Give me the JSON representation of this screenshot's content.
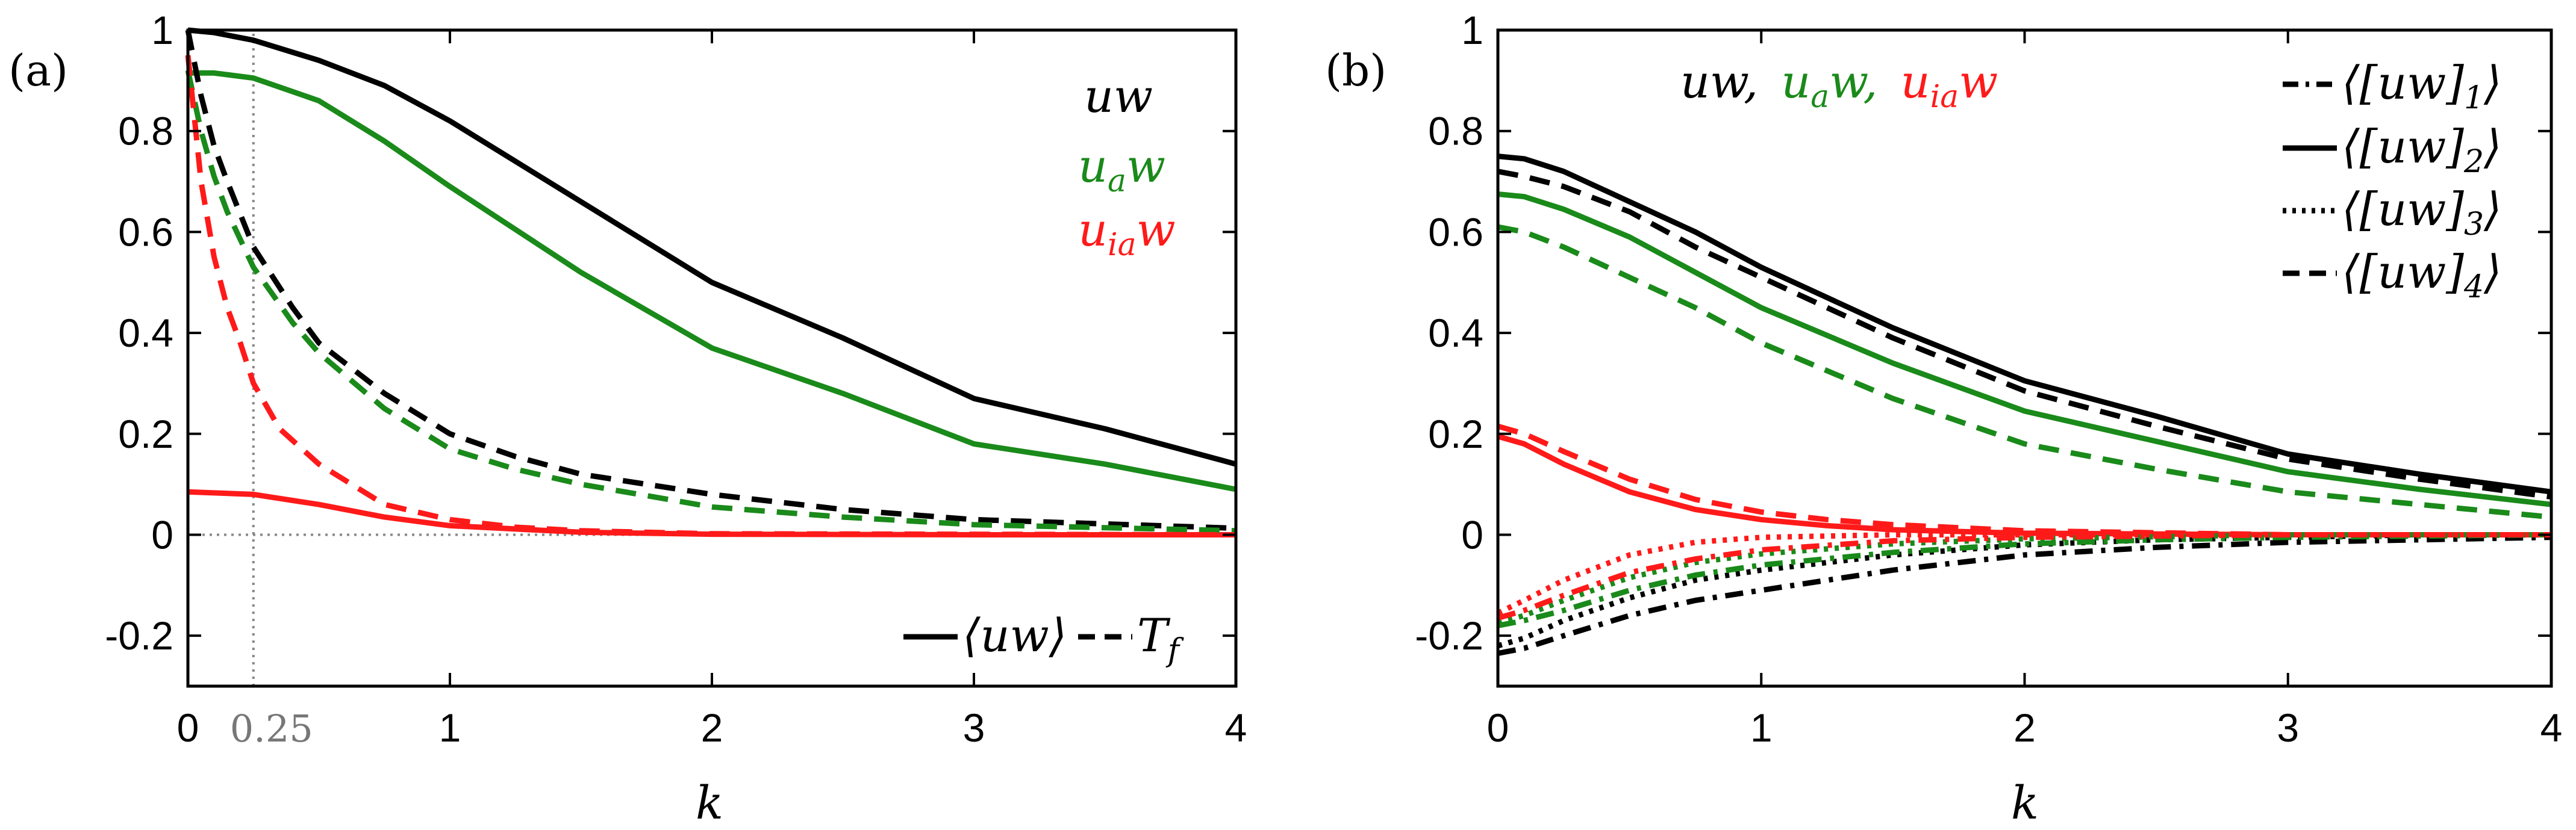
{
  "chart_data": [
    {
      "type": "line",
      "panel_label": "(a)",
      "xlabel": "k",
      "ylabel": "",
      "xlim": [
        0,
        4
      ],
      "ylim": [
        -0.3,
        1
      ],
      "xticks": [
        "0",
        "1",
        "2",
        "3",
        "4"
      ],
      "yticks": [
        "-0.2",
        "0",
        "0.2",
        "0.4",
        "0.6",
        "0.8",
        "1"
      ],
      "ref_x_label": "0.25",
      "ref_x_value": 0.25,
      "color_labels": [
        {
          "text": "uw",
          "color": "#000000"
        },
        {
          "text": "u",
          "sub": "a",
          "tail": "w",
          "color": "#1a8a1a"
        },
        {
          "text": "u",
          "sub": "ia",
          "tail": "w",
          "color": "#ff1a1a"
        }
      ],
      "legend": [
        {
          "label": "⟨uw⟩",
          "style": "solid"
        },
        {
          "label": "T",
          "sub": "f",
          "style": "dashed"
        }
      ],
      "series": [
        {
          "name": "uw ⟨uw⟩",
          "color": "#000000",
          "style": "solid",
          "x": [
            0,
            0.1,
            0.25,
            0.5,
            0.75,
            1,
            1.5,
            2,
            2.5,
            3,
            3.5,
            4
          ],
          "y": [
            1.0,
            0.995,
            0.98,
            0.94,
            0.89,
            0.82,
            0.66,
            0.5,
            0.39,
            0.27,
            0.21,
            0.14
          ]
        },
        {
          "name": "u_a w ⟨uw⟩",
          "color": "#1a8a1a",
          "style": "solid",
          "x": [
            0,
            0.1,
            0.25,
            0.5,
            0.75,
            1,
            1.5,
            2,
            2.5,
            3,
            3.5,
            4
          ],
          "y": [
            0.915,
            0.915,
            0.905,
            0.86,
            0.78,
            0.69,
            0.52,
            0.37,
            0.28,
            0.18,
            0.14,
            0.09
          ]
        },
        {
          "name": "u_ia w ⟨uw⟩",
          "color": "#ff1a1a",
          "style": "solid",
          "x": [
            0,
            0.25,
            0.5,
            0.75,
            1,
            1.5,
            2,
            3,
            4
          ],
          "y": [
            0.085,
            0.08,
            0.06,
            0.035,
            0.018,
            0.005,
            0.001,
            0.0,
            0.0
          ]
        },
        {
          "name": "uw T_f",
          "color": "#000000",
          "style": "dashed",
          "x": [
            0,
            0.05,
            0.1,
            0.15,
            0.25,
            0.4,
            0.5,
            0.75,
            1,
            1.25,
            1.5,
            2,
            2.5,
            3,
            4
          ],
          "y": [
            1.0,
            0.87,
            0.77,
            0.7,
            0.57,
            0.45,
            0.38,
            0.28,
            0.2,
            0.155,
            0.12,
            0.08,
            0.05,
            0.03,
            0.013
          ]
        },
        {
          "name": "u_a w T_f",
          "color": "#1a8a1a",
          "style": "dashed",
          "x": [
            0,
            0.05,
            0.1,
            0.15,
            0.25,
            0.4,
            0.5,
            0.75,
            1,
            1.25,
            1.5,
            2,
            2.5,
            3,
            4
          ],
          "y": [
            0.92,
            0.8,
            0.71,
            0.64,
            0.53,
            0.42,
            0.36,
            0.25,
            0.17,
            0.13,
            0.1,
            0.055,
            0.035,
            0.02,
            0.008
          ]
        },
        {
          "name": "u_ia w T_f",
          "color": "#ff1a1a",
          "style": "dashed",
          "x": [
            0,
            0.05,
            0.1,
            0.15,
            0.2,
            0.25,
            0.35,
            0.5,
            0.75,
            1,
            1.25,
            1.5,
            2,
            4
          ],
          "y": [
            0.95,
            0.7,
            0.55,
            0.45,
            0.38,
            0.3,
            0.21,
            0.14,
            0.06,
            0.03,
            0.015,
            0.008,
            0.002,
            0.0
          ]
        }
      ]
    },
    {
      "type": "line",
      "panel_label": "(b)",
      "xlabel": "k",
      "ylabel": "",
      "xlim": [
        0,
        4
      ],
      "ylim": [
        -0.3,
        1
      ],
      "xticks": [
        "0",
        "1",
        "2",
        "3",
        "4"
      ],
      "yticks": [
        "-0.2",
        "0",
        "0.2",
        "0.4",
        "0.6",
        "0.8",
        "1"
      ],
      "title_labels": [
        {
          "text": "uw,",
          "color": "#000000"
        },
        {
          "text": "u",
          "sub": "a",
          "tail": "w,",
          "color": "#1a8a1a"
        },
        {
          "text": "u",
          "sub": "ia",
          "tail": "w",
          "color": "#ff1a1a"
        }
      ],
      "legend": [
        {
          "label": "⟨[uw]",
          "sub": "1",
          "suffix": "⟩",
          "style": "dashdot"
        },
        {
          "label": "⟨[uw]",
          "sub": "2",
          "suffix": "⟩",
          "style": "solid"
        },
        {
          "label": "⟨[uw]",
          "sub": "3",
          "suffix": "⟩",
          "style": "dotted"
        },
        {
          "label": "⟨[uw]",
          "sub": "4",
          "suffix": "⟩",
          "style": "dashed"
        }
      ],
      "series": [
        {
          "name": "uw [uw]2",
          "color": "#000000",
          "style": "solid",
          "x": [
            0,
            0.1,
            0.25,
            0.5,
            0.75,
            1,
            1.5,
            2,
            2.5,
            3,
            3.5,
            4
          ],
          "y": [
            0.75,
            0.745,
            0.72,
            0.66,
            0.6,
            0.53,
            0.41,
            0.305,
            0.235,
            0.16,
            0.12,
            0.085
          ]
        },
        {
          "name": "uw [uw]4",
          "color": "#000000",
          "style": "dashed",
          "x": [
            0,
            0.1,
            0.25,
            0.5,
            0.75,
            1,
            1.5,
            2,
            2.5,
            3,
            3.5,
            4
          ],
          "y": [
            0.72,
            0.71,
            0.69,
            0.64,
            0.57,
            0.51,
            0.39,
            0.285,
            0.215,
            0.15,
            0.11,
            0.075
          ]
        },
        {
          "name": "u_a w [uw]2",
          "color": "#1a8a1a",
          "style": "solid",
          "x": [
            0,
            0.1,
            0.25,
            0.5,
            0.75,
            1,
            1.5,
            2,
            2.5,
            3,
            3.5,
            4
          ],
          "y": [
            0.675,
            0.67,
            0.645,
            0.59,
            0.52,
            0.45,
            0.34,
            0.245,
            0.185,
            0.125,
            0.09,
            0.06
          ]
        },
        {
          "name": "u_a w [uw]4",
          "color": "#1a8a1a",
          "style": "dashed",
          "x": [
            0,
            0.1,
            0.25,
            0.5,
            0.75,
            1,
            1.5,
            2,
            2.5,
            3,
            3.5,
            4
          ],
          "y": [
            0.61,
            0.6,
            0.57,
            0.51,
            0.45,
            0.38,
            0.27,
            0.18,
            0.13,
            0.085,
            0.06,
            0.035
          ]
        },
        {
          "name": "u_ia w [uw]2",
          "color": "#ff1a1a",
          "style": "solid",
          "x": [
            0,
            0.1,
            0.25,
            0.5,
            0.75,
            1,
            1.25,
            1.5,
            2,
            3,
            4
          ],
          "y": [
            0.195,
            0.18,
            0.14,
            0.085,
            0.05,
            0.03,
            0.018,
            0.01,
            0.003,
            0.0,
            0.0
          ]
        },
        {
          "name": "u_ia w [uw]4",
          "color": "#ff1a1a",
          "style": "dashed",
          "x": [
            0,
            0.1,
            0.25,
            0.5,
            0.75,
            1,
            1.25,
            1.5,
            2,
            3,
            4
          ],
          "y": [
            0.215,
            0.2,
            0.165,
            0.11,
            0.07,
            0.045,
            0.03,
            0.02,
            0.008,
            0.0,
            0.0
          ]
        },
        {
          "name": "uw [uw]1",
          "color": "#000000",
          "style": "dashdot",
          "x": [
            0,
            0.1,
            0.25,
            0.5,
            0.75,
            1,
            1.5,
            2,
            2.5,
            3,
            3.5,
            4
          ],
          "y": [
            -0.235,
            -0.225,
            -0.2,
            -0.16,
            -0.13,
            -0.11,
            -0.07,
            -0.04,
            -0.025,
            -0.015,
            -0.01,
            -0.005
          ]
        },
        {
          "name": "uw [uw]3",
          "color": "#000000",
          "style": "dotted",
          "x": [
            0,
            0.1,
            0.25,
            0.5,
            0.75,
            1,
            1.5,
            2,
            2.5,
            3,
            3.5,
            4
          ],
          "y": [
            -0.22,
            -0.205,
            -0.17,
            -0.125,
            -0.09,
            -0.07,
            -0.04,
            -0.02,
            -0.01,
            -0.005,
            0.0,
            0.0
          ]
        },
        {
          "name": "u_a w [uw]1",
          "color": "#1a8a1a",
          "style": "dashdot",
          "x": [
            0,
            0.1,
            0.25,
            0.5,
            0.75,
            1,
            1.5,
            2,
            2.5,
            3,
            4
          ],
          "y": [
            -0.18,
            -0.17,
            -0.15,
            -0.11,
            -0.08,
            -0.06,
            -0.035,
            -0.018,
            -0.01,
            -0.005,
            0.0
          ]
        },
        {
          "name": "u_a w [uw]3",
          "color": "#1a8a1a",
          "style": "dotted",
          "x": [
            0,
            0.1,
            0.25,
            0.5,
            0.75,
            1,
            1.5,
            2,
            3,
            4
          ],
          "y": [
            -0.175,
            -0.16,
            -0.13,
            -0.085,
            -0.055,
            -0.038,
            -0.018,
            -0.008,
            0.0,
            0.0
          ]
        },
        {
          "name": "u_ia w [uw]1",
          "color": "#ff1a1a",
          "style": "dashdot",
          "x": [
            0,
            0.1,
            0.25,
            0.5,
            0.75,
            1,
            1.5,
            2,
            3,
            4
          ],
          "y": [
            -0.165,
            -0.15,
            -0.12,
            -0.075,
            -0.048,
            -0.03,
            -0.012,
            -0.005,
            0.0,
            0.0
          ]
        },
        {
          "name": "u_ia w [uw]3",
          "color": "#ff1a1a",
          "style": "dotted",
          "x": [
            0,
            0.1,
            0.25,
            0.5,
            0.75,
            1,
            1.5,
            2,
            3,
            4
          ],
          "y": [
            -0.155,
            -0.13,
            -0.09,
            -0.04,
            -0.015,
            -0.005,
            0.0,
            0.0,
            0.0,
            0.0
          ]
        }
      ]
    }
  ]
}
